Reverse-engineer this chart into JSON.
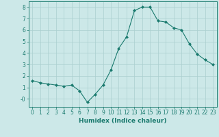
{
  "x": [
    0,
    1,
    2,
    3,
    4,
    5,
    6,
    7,
    8,
    9,
    10,
    11,
    12,
    13,
    14,
    15,
    16,
    17,
    18,
    19,
    20,
    21,
    22,
    23
  ],
  "y": [
    1.6,
    1.4,
    1.3,
    1.2,
    1.1,
    1.2,
    0.7,
    -0.3,
    0.4,
    1.2,
    2.5,
    4.4,
    5.4,
    7.7,
    8.0,
    8.0,
    6.8,
    6.7,
    6.2,
    6.0,
    4.8,
    3.9,
    3.4,
    3.0
  ],
  "line_color": "#1a7a6e",
  "marker": "D",
  "marker_size": 2,
  "bg_color": "#cce8e8",
  "grid_color": "#aacfcf",
  "xlabel": "Humidex (Indice chaleur)",
  "ylim": [
    -0.7,
    8.5
  ],
  "xlim": [
    -0.5,
    23.5
  ],
  "yticks": [
    0,
    1,
    2,
    3,
    4,
    5,
    6,
    7,
    8
  ],
  "ytick_labels": [
    "-0",
    "1",
    "2",
    "3",
    "4",
    "5",
    "6",
    "7",
    "8"
  ],
  "xticks": [
    0,
    1,
    2,
    3,
    4,
    5,
    6,
    7,
    8,
    9,
    10,
    11,
    12,
    13,
    14,
    15,
    16,
    17,
    18,
    19,
    20,
    21,
    22,
    23
  ],
  "label_fontsize": 6.5,
  "tick_fontsize": 5.5
}
